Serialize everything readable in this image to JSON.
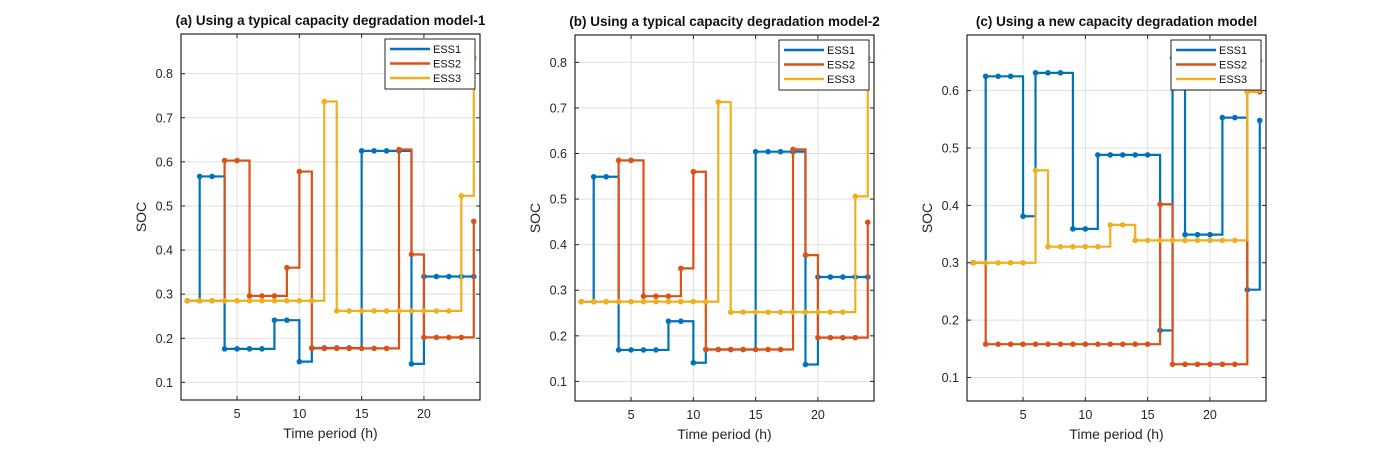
{
  "figure": {
    "colors": {
      "ESS1": "#0072BD",
      "ESS2": "#D95319",
      "ESS3": "#EDB120"
    }
  },
  "chart_data": [
    {
      "type": "line",
      "style": "stairs",
      "title": "(a) Using a typical capacity degradation model-1",
      "xlabel": "Time period (h)",
      "ylabel": "SOC",
      "xlim": [
        0.5,
        24.5
      ],
      "ylim": [
        0.06,
        0.89
      ],
      "xticks": [
        5,
        10,
        15,
        20
      ],
      "yticks": [
        0.1,
        0.2,
        0.3,
        0.4,
        0.5,
        0.6,
        0.7,
        0.8
      ],
      "grid": true,
      "legend": {
        "position": "top-right",
        "entries": [
          "ESS1",
          "ESS2",
          "ESS3"
        ]
      },
      "x": [
        1,
        2,
        3,
        4,
        5,
        6,
        7,
        8,
        9,
        10,
        11,
        12,
        13,
        14,
        15,
        16,
        17,
        18,
        19,
        20,
        21,
        22,
        23,
        24
      ],
      "series": [
        {
          "name": "ESS1",
          "values": [
            0.285,
            0.567,
            0.567,
            0.176,
            0.176,
            0.176,
            0.176,
            0.241,
            0.241,
            0.147,
            0.178,
            0.178,
            0.178,
            0.178,
            0.625,
            0.625,
            0.625,
            0.625,
            0.142,
            0.34,
            0.34,
            0.34,
            0.34,
            0.34
          ]
        },
        {
          "name": "ESS2",
          "values": [
            0.285,
            0.285,
            0.285,
            0.603,
            0.603,
            0.296,
            0.296,
            0.296,
            0.36,
            0.578,
            0.177,
            0.177,
            0.177,
            0.177,
            0.177,
            0.177,
            0.177,
            0.628,
            0.39,
            0.202,
            0.202,
            0.202,
            0.202,
            0.465
          ]
        },
        {
          "name": "ESS3",
          "values": [
            0.285,
            0.285,
            0.285,
            0.285,
            0.285,
            0.285,
            0.285,
            0.285,
            0.285,
            0.285,
            0.285,
            0.737,
            0.262,
            0.262,
            0.262,
            0.262,
            0.262,
            0.262,
            0.262,
            0.262,
            0.262,
            0.262,
            0.523,
            0.836
          ]
        }
      ]
    },
    {
      "type": "line",
      "style": "stairs",
      "title": "(b) Using a typical capacity degradation model-2",
      "xlabel": "Time period (h)",
      "ylabel": "SOC",
      "xlim": [
        0.5,
        24.5
      ],
      "ylim": [
        0.057,
        0.86
      ],
      "xticks": [
        5,
        10,
        15,
        20
      ],
      "yticks": [
        0.1,
        0.2,
        0.3,
        0.4,
        0.5,
        0.6,
        0.7,
        0.8
      ],
      "grid": true,
      "legend": {
        "position": "top-right",
        "entries": [
          "ESS1",
          "ESS2",
          "ESS3"
        ]
      },
      "x": [
        1,
        2,
        3,
        4,
        5,
        6,
        7,
        8,
        9,
        10,
        11,
        12,
        13,
        14,
        15,
        16,
        17,
        18,
        19,
        20,
        21,
        22,
        23,
        24
      ],
      "series": [
        {
          "name": "ESS1",
          "values": [
            0.275,
            0.549,
            0.549,
            0.169,
            0.169,
            0.169,
            0.169,
            0.232,
            0.232,
            0.141,
            0.17,
            0.17,
            0.17,
            0.17,
            0.604,
            0.604,
            0.604,
            0.604,
            0.137,
            0.329,
            0.329,
            0.329,
            0.329,
            0.329
          ]
        },
        {
          "name": "ESS2",
          "values": [
            0.275,
            0.275,
            0.275,
            0.585,
            0.585,
            0.287,
            0.287,
            0.287,
            0.348,
            0.56,
            0.17,
            0.17,
            0.17,
            0.17,
            0.17,
            0.17,
            0.17,
            0.609,
            0.377,
            0.196,
            0.196,
            0.196,
            0.196,
            0.449
          ]
        },
        {
          "name": "ESS3",
          "values": [
            0.275,
            0.275,
            0.275,
            0.275,
            0.275,
            0.275,
            0.275,
            0.275,
            0.275,
            0.275,
            0.275,
            0.713,
            0.252,
            0.252,
            0.252,
            0.252,
            0.252,
            0.252,
            0.252,
            0.252,
            0.252,
            0.252,
            0.506,
            0.809
          ]
        }
      ]
    },
    {
      "type": "line",
      "style": "stairs",
      "title": "(c) Using a new capacity degradation model",
      "xlabel": "Time period (h)",
      "ylabel": "SOC",
      "xlim": [
        0.5,
        24.5
      ],
      "ylim": [
        0.059,
        0.697
      ],
      "xticks": [
        5,
        10,
        15,
        20
      ],
      "yticks": [
        0.1,
        0.2,
        0.3,
        0.4,
        0.5,
        0.6
      ],
      "grid": true,
      "legend": {
        "position": "top-right",
        "entries": [
          "ESS1",
          "ESS2",
          "ESS3"
        ]
      },
      "x": [
        1,
        2,
        3,
        4,
        5,
        6,
        7,
        8,
        9,
        10,
        11,
        12,
        13,
        14,
        15,
        16,
        17,
        18,
        19,
        20,
        21,
        22,
        23,
        24
      ],
      "series": [
        {
          "name": "ESS1",
          "values": [
            0.3,
            0.625,
            0.625,
            0.625,
            0.381,
            0.631,
            0.631,
            0.631,
            0.359,
            0.359,
            0.488,
            0.488,
            0.488,
            0.488,
            0.488,
            0.182,
            0.657,
            0.349,
            0.349,
            0.349,
            0.553,
            0.553,
            0.253,
            0.548
          ]
        },
        {
          "name": "ESS2",
          "values": [
            0.3,
            0.158,
            0.158,
            0.158,
            0.158,
            0.158,
            0.158,
            0.158,
            0.158,
            0.158,
            0.158,
            0.158,
            0.158,
            0.158,
            0.158,
            0.402,
            0.123,
            0.123,
            0.123,
            0.123,
            0.123,
            0.123,
            0.598,
            0.598
          ]
        },
        {
          "name": "ESS3",
          "values": [
            0.3,
            0.3,
            0.3,
            0.3,
            0.3,
            0.461,
            0.328,
            0.328,
            0.328,
            0.328,
            0.328,
            0.366,
            0.366,
            0.339,
            0.339,
            0.339,
            0.339,
            0.339,
            0.339,
            0.339,
            0.339,
            0.339,
            0.598,
            0.652
          ]
        }
      ]
    }
  ]
}
